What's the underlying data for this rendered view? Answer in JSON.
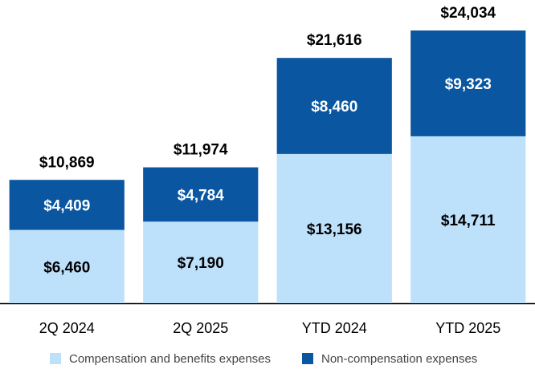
{
  "chart_data": {
    "type": "stacked_bar",
    "categories": [
      "2Q 2024",
      "2Q 2025",
      "YTD 2024",
      "YTD 2025"
    ],
    "series": [
      {
        "name": "Compensation and benefits expenses",
        "color": "#bde0fb",
        "label_color": "#000000",
        "values": [
          6460,
          7190,
          13156,
          14711
        ],
        "value_labels": [
          "$6,460",
          "$7,190",
          "$13,156",
          "$14,711"
        ]
      },
      {
        "name": "Non-compensation expenses",
        "color": "#0a56a0",
        "label_color": "#ffffff",
        "values": [
          4409,
          4784,
          8460,
          9323
        ],
        "value_labels": [
          "$4,409",
          "$4,784",
          "$8,460",
          "$9,323"
        ]
      }
    ],
    "totals": {
      "values": [
        10869,
        11974,
        21616,
        24034
      ],
      "value_labels": [
        "$10,869",
        "$11,974",
        "$21,616",
        "$24,034"
      ]
    }
  }
}
